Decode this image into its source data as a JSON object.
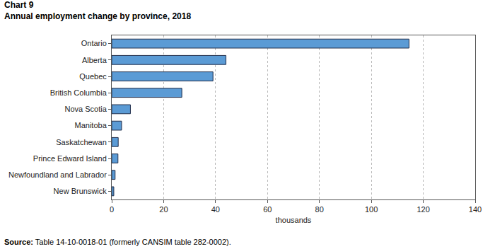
{
  "chart_data": {
    "type": "bar",
    "title": "Chart 9",
    "subtitle": "Annual employment change by province, 2018",
    "orientation": "horizontal",
    "categories": [
      "Ontario",
      "Alberta",
      "Quebec",
      "British Columbia",
      "Nova Scotia",
      "Manitoba",
      "Saskatchewan",
      "Prince Edward Island",
      "Newfoundland and Labrador",
      "New Brunswick"
    ],
    "values": [
      114.5,
      44,
      39,
      27,
      7.2,
      3.8,
      2.5,
      2.4,
      1.3,
      0.8
    ],
    "color": "#5b9bd5",
    "xlim": [
      0,
      140
    ],
    "xticks": [
      0,
      20,
      40,
      60,
      80,
      100,
      120,
      140
    ],
    "x_label": "thousands",
    "source": "Source: Table 14-10-0018-01 (formerly CANSIM table 282-0002).",
    "grid": true
  }
}
